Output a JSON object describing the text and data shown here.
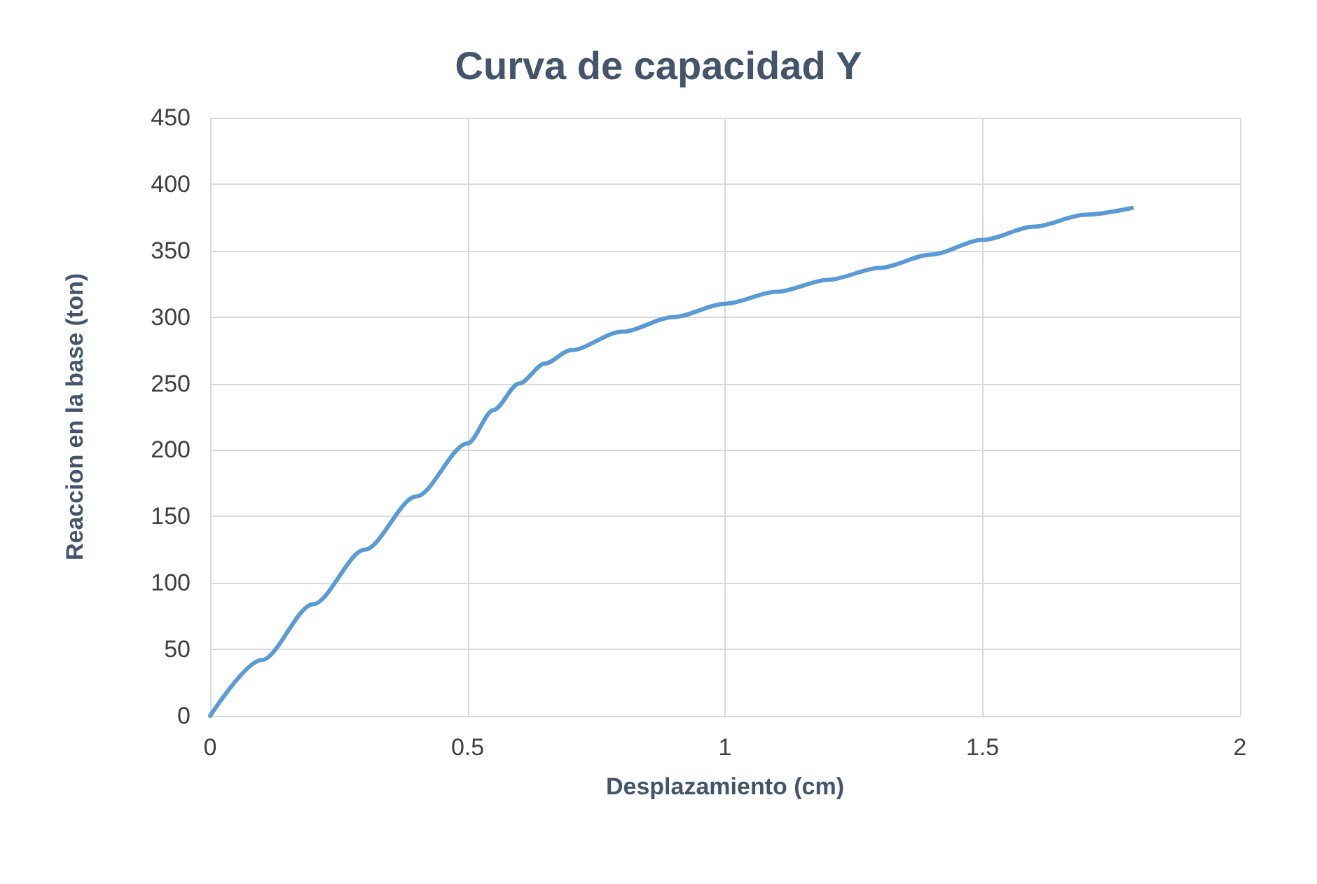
{
  "chart_data": {
    "type": "line",
    "title": "Curva de capacidad Y",
    "xlabel": "Desplazamiento (cm)",
    "ylabel": "Reaccion en la base (ton)",
    "x": [
      0,
      0.1,
      0.2,
      0.3,
      0.4,
      0.5,
      0.55,
      0.6,
      0.65,
      0.7,
      0.8,
      0.9,
      1.0,
      1.1,
      1.2,
      1.3,
      1.4,
      1.5,
      1.6,
      1.7,
      1.79
    ],
    "series": [
      {
        "color": "#5b9bd5",
        "values": [
          0,
          42,
          84,
          125,
          165,
          205,
          230,
          250,
          265,
          275,
          289,
          300,
          310,
          319,
          328,
          337,
          347,
          358,
          368,
          377,
          382
        ]
      }
    ],
    "xlim": [
      0,
      2
    ],
    "xticks": [
      0,
      0.5,
      1,
      1.5,
      2
    ],
    "ylim": [
      0,
      450
    ],
    "yticks": [
      0,
      50,
      100,
      150,
      200,
      250,
      300,
      350,
      400,
      450
    ],
    "grid": true
  }
}
